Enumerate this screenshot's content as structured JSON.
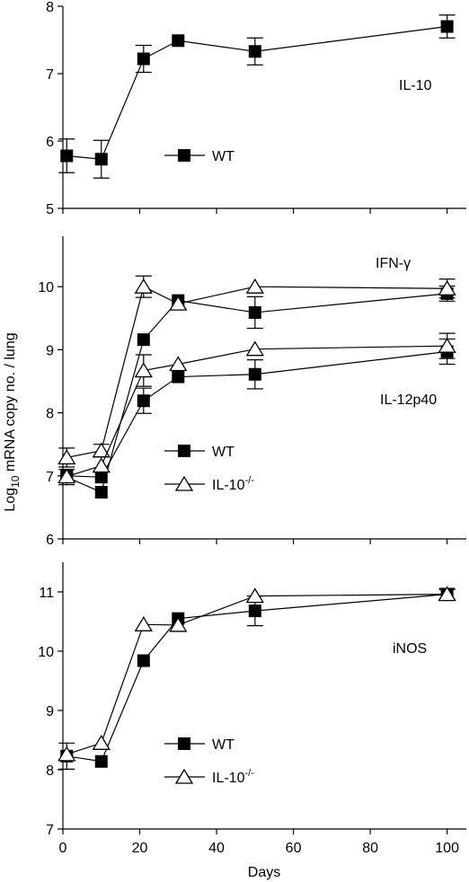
{
  "figure": {
    "ylabel_prefix": "Log",
    "ylabel_sub": "10",
    "ylabel_rest": " mRNA copy no. / lung",
    "xlabel": "Days"
  },
  "chart_data": [
    {
      "type": "line",
      "panel": "top",
      "title": "",
      "annotations": [
        "IL-10"
      ],
      "legend": [
        {
          "label": "WT",
          "marker": "filled-square"
        }
      ],
      "legend_position": "middle-left",
      "xlim": [
        0,
        105
      ],
      "ylim": [
        5,
        8
      ],
      "yticks": [
        5,
        6,
        7,
        8
      ],
      "series": [
        {
          "name": "WT",
          "group": "IL-10",
          "marker": "filled-square",
          "x": [
            1,
            10,
            21,
            30,
            50,
            100
          ],
          "y": [
            5.78,
            5.73,
            7.22,
            7.49,
            7.33,
            7.7
          ],
          "err": [
            0.25,
            0.28,
            0.2,
            0.0,
            0.2,
            0.17
          ]
        }
      ]
    },
    {
      "type": "line",
      "panel": "middle",
      "title": "",
      "annotations": [
        "IFN-γ",
        "IL-12p40"
      ],
      "legend": [
        {
          "label": "WT",
          "marker": "filled-square"
        },
        {
          "label": "IL-10",
          "sup": "-/-",
          "marker": "open-triangle"
        }
      ],
      "legend_position": "middle-left",
      "xlim": [
        0,
        105
      ],
      "ylim": [
        6,
        10.8
      ],
      "yticks": [
        6,
        7,
        8,
        9,
        10
      ],
      "series": [
        {
          "name": "WT",
          "group": "IFN-γ",
          "marker": "filled-square",
          "x": [
            1,
            10,
            21,
            30,
            50,
            100
          ],
          "y": [
            6.98,
            6.74,
            9.16,
            9.78,
            9.59,
            9.89
          ],
          "err": [
            0.12,
            0.0,
            0.0,
            0.0,
            0.25,
            0.12
          ]
        },
        {
          "name": "IL-10-/-",
          "group": "IFN-γ",
          "marker": "open-triangle",
          "x": [
            1,
            10,
            21,
            30,
            50,
            100
          ],
          "y": [
            7.29,
            7.4,
            10.0,
            9.73,
            10.0,
            9.97
          ],
          "err": [
            0.15,
            0.1,
            0.17,
            0.0,
            0.0,
            0.15
          ]
        },
        {
          "name": "WT",
          "group": "IL-12p40",
          "marker": "filled-square",
          "x": [
            1,
            10,
            21,
            30,
            50,
            100
          ],
          "y": [
            7.0,
            6.98,
            8.19,
            8.57,
            8.61,
            8.97
          ],
          "err": [
            0.0,
            0.0,
            0.2,
            0.0,
            0.23,
            0.2
          ]
        },
        {
          "name": "IL-10-/-",
          "group": "IL-12p40",
          "marker": "open-triangle",
          "x": [
            1,
            10,
            21,
            30,
            50,
            100
          ],
          "y": [
            6.99,
            7.16,
            8.67,
            8.77,
            9.01,
            9.06
          ],
          "err": [
            0.0,
            0.0,
            0.25,
            0.0,
            0.0,
            0.2
          ]
        }
      ]
    },
    {
      "type": "line",
      "panel": "bottom",
      "title": "",
      "annotations": [
        "iNOS"
      ],
      "legend": [
        {
          "label": "WT",
          "marker": "filled-square"
        },
        {
          "label": "IL-10",
          "sup": "-/-",
          "marker": "open-triangle"
        }
      ],
      "legend_position": "lower-left",
      "xlim": [
        0,
        105
      ],
      "ylim": [
        7,
        11.5
      ],
      "yticks": [
        7,
        8,
        9,
        10,
        11
      ],
      "xticks": [
        0,
        20,
        40,
        60,
        80,
        100
      ],
      "series": [
        {
          "name": "WT",
          "group": "iNOS",
          "marker": "filled-square",
          "x": [
            1,
            10,
            21,
            30,
            50,
            100
          ],
          "y": [
            8.23,
            8.14,
            9.84,
            10.55,
            10.68,
            10.96
          ],
          "err": [
            0.22,
            0.0,
            0.0,
            0.0,
            0.25,
            0.1
          ]
        },
        {
          "name": "IL-10-/-",
          "group": "iNOS",
          "marker": "open-triangle",
          "x": [
            1,
            10,
            21,
            30,
            50,
            100
          ],
          "y": [
            8.26,
            8.45,
            10.45,
            10.44,
            10.93,
            10.96
          ],
          "err": [
            0.0,
            0.0,
            0.0,
            0.0,
            0.0,
            0.08
          ]
        }
      ]
    }
  ]
}
